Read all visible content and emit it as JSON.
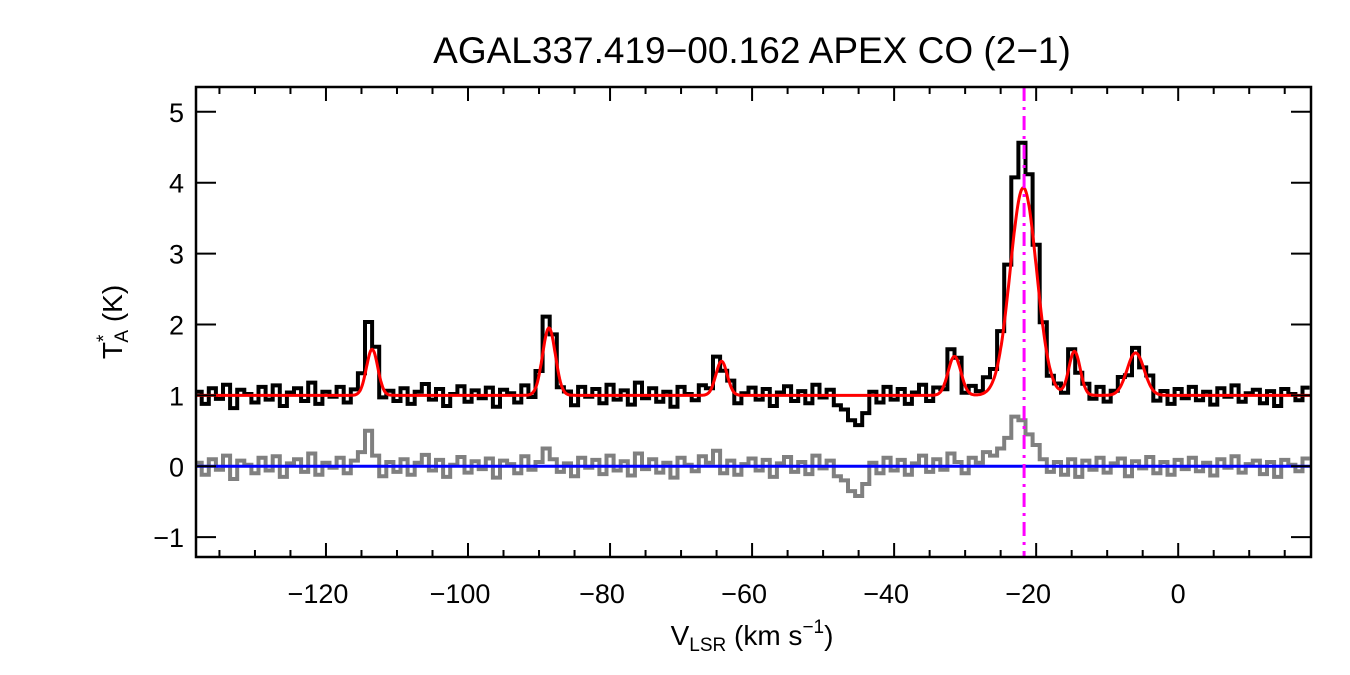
{
  "chart_data": {
    "type": "line",
    "title": "AGAL337.419−00.162  APEX CO (2−1)",
    "xlabel": {
      "main": "V",
      "sub": "LSR",
      "unit": " (km s",
      "sup": "−1",
      "close": ")"
    },
    "ylabel": {
      "main": "T",
      "sup": "*",
      "sub": "A",
      "unit": " (K)"
    },
    "xlim": [
      -138.3,
      18.7
    ],
    "ylim": [
      -1.28,
      5.35
    ],
    "x_ticks": [
      -120,
      -100,
      -80,
      -60,
      -40,
      -20,
      0
    ],
    "x_tick_labels": [
      "−120",
      "−100",
      "−80",
      "−60",
      "−40",
      "−20",
      "0"
    ],
    "y_ticks": [
      -1,
      0,
      1,
      2,
      3,
      4,
      5
    ],
    "y_tick_labels": [
      "−1",
      "0",
      "1",
      "2",
      "3",
      "4",
      "5"
    ],
    "grid": false,
    "colors": {
      "spectrum": "#000000",
      "fit": "#ff0000",
      "residual": "#808080",
      "zero_line": "#0000ff",
      "velocity_marker": "#ff00ff"
    },
    "velocity_marker": -21.7,
    "fit": {
      "baseline": 1.0,
      "components": [
        {
          "center": -113.5,
          "amplitude": 0.65,
          "sigma": 0.8
        },
        {
          "center": -88.6,
          "amplitude": 0.95,
          "sigma": 0.9
        },
        {
          "center": -64.3,
          "amplitude": 0.48,
          "sigma": 0.8
        },
        {
          "center": -31.5,
          "amplitude": 0.55,
          "sigma": 0.9
        },
        {
          "center": -21.8,
          "amplitude": 2.93,
          "sigma": 1.85
        },
        {
          "center": -14.6,
          "amplitude": 0.62,
          "sigma": 0.8
        },
        {
          "center": -6.0,
          "amplitude": 0.6,
          "sigma": 1.2
        }
      ]
    },
    "channel_start": -138,
    "channel_width": 1,
    "residual": [
      0.05,
      -0.12,
      0.1,
      -0.05,
      0.15,
      -0.18,
      0.08,
      0.02,
      -0.1,
      0.12,
      -0.06,
      0.14,
      -0.15,
      0.04,
      0.1,
      -0.08,
      0.18,
      -0.12,
      0.05,
      -0.02,
      0.12,
      -0.1,
      0.08,
      0.2,
      0.5,
      0.15,
      -0.14,
      0.06,
      -0.08,
      0.1,
      -0.12,
      0.05,
      0.16,
      -0.06,
      0.09,
      -0.15,
      0.02,
      0.13,
      -0.09,
      0.07,
      -0.04,
      0.11,
      -0.16,
      0.08,
      0.03,
      -0.1,
      0.14,
      -0.05,
      0.06,
      0.25,
      0.1,
      -0.08,
      0.04,
      -0.14,
      0.12,
      -0.02,
      0.09,
      -0.11,
      0.15,
      -0.06,
      0.07,
      -0.13,
      0.18,
      -0.04,
      0.1,
      -0.09,
      0.05,
      -0.16,
      0.12,
      0.02,
      -0.07,
      0.14,
      0.05,
      0.22,
      -0.1,
      0.08,
      -0.12,
      0.03,
      0.11,
      -0.06,
      0.09,
      -0.15,
      0.04,
      0.13,
      -0.08,
      0.06,
      -0.11,
      0.15,
      -0.03,
      0.08,
      -0.14,
      -0.2,
      -0.35,
      -0.42,
      -0.25,
      0.05,
      -0.1,
      0.12,
      -0.06,
      0.09,
      -0.12,
      0.04,
      0.15,
      -0.08,
      0.1,
      -0.05,
      0.18,
      0.06,
      -0.1,
      0.12,
      0.05,
      0.2,
      0.15,
      0.25,
      0.4,
      0.7,
      0.65,
      0.45,
      0.3,
      0.1,
      -0.08,
      0.06,
      -0.12,
      0.1,
      -0.15,
      0.08,
      -0.05,
      0.12,
      -0.09,
      0.04,
      0.11,
      -0.14,
      0.07,
      -0.03,
      0.13,
      -0.1,
      0.06,
      -0.12,
      0.09,
      -0.04,
      0.12,
      -0.07,
      0.05,
      -0.13,
      0.1,
      -0.02,
      0.14,
      -0.09,
      0.03,
      0.08,
      -0.11,
      0.06,
      -0.15,
      0.09,
      0.02,
      -0.07,
      0.11
    ]
  }
}
